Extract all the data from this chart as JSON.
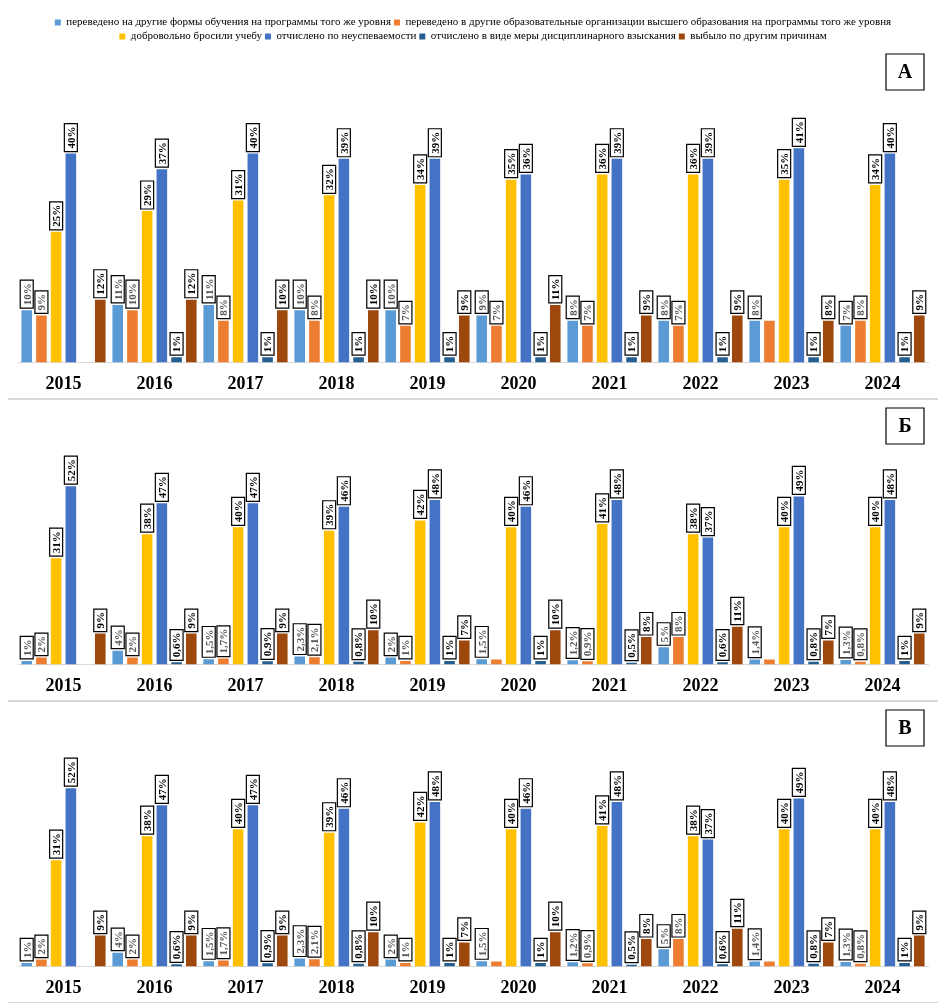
{
  "chart_data": [
    {
      "type": "bar",
      "categories": [
        "2015",
        "2016",
        "2017",
        "2018",
        "2019",
        "2020",
        "2021",
        "2022",
        "2023",
        "2024"
      ],
      "legend": "top",
      "annotations": [
        "А"
      ],
      "series": [
        {
          "name": "переведено на другие формы обучения на программы того же уровня",
          "color": "#5b9bd5",
          "values": [
            10,
            11,
            11,
            10,
            10,
            9,
            8,
            8,
            8,
            7
          ],
          "value_labels": [
            "10%",
            "11%",
            "11%",
            "10%",
            "10%",
            "9%",
            "8%",
            "8%",
            "8%",
            "7%"
          ]
        },
        {
          "name": "переведено в другие образовательные организации высшего образования на программы того же уровня",
          "color": "#ed7d31",
          "values": [
            9,
            10,
            8,
            8,
            7,
            7,
            7,
            7,
            8,
            8
          ],
          "value_labels": [
            "9%",
            "10%",
            "8%",
            "8%",
            "7%",
            "7%",
            "7%",
            "7%",
            null,
            "8%"
          ]
        },
        {
          "name": "добровольно бросили учебу",
          "color": "#ffc000",
          "values": [
            25,
            29,
            31,
            32,
            34,
            35,
            36,
            36,
            35,
            34
          ],
          "value_labels": [
            "25%",
            "29%",
            "31%",
            "32%",
            "34%",
            "35%",
            "36%",
            "36%",
            "35%",
            "34%"
          ]
        },
        {
          "name": "отчислено по неуспеваемости",
          "color": "#4472c4",
          "values": [
            40,
            37,
            40,
            39,
            39,
            36,
            39,
            39,
            41,
            40
          ],
          "value_labels": [
            "40%",
            "37%",
            "40%",
            "39%",
            "39%",
            "36%",
            "39%",
            "39%",
            "41%",
            "40%"
          ]
        },
        {
          "name": "отчислено в виде меры дисциплинарного взыскания",
          "color": "#255e91",
          "values": [
            null,
            1,
            1,
            1,
            1,
            1,
            1,
            1,
            1,
            1
          ],
          "value_labels": [
            null,
            "1%",
            "1%",
            "1%",
            "1%",
            "1%",
            "1%",
            "1%",
            "1%",
            "1%"
          ]
        },
        {
          "name": "выбыло по другим причинам",
          "color": "#9e480e",
          "values": [
            12,
            12,
            10,
            10,
            9,
            11,
            9,
            9,
            8,
            9
          ],
          "value_labels": [
            "12%",
            "12%",
            "10%",
            "10%",
            "9%",
            "11%",
            "9%",
            "9%",
            "8%",
            "9%"
          ]
        }
      ]
    },
    {
      "type": "bar",
      "categories": [
        "2015",
        "2016",
        "2017",
        "2018",
        "2019",
        "2020",
        "2021",
        "2022",
        "2023",
        "2024"
      ],
      "annotations": [
        "Б"
      ],
      "series": [
        {
          "color": "#5b9bd5",
          "values": [
            1,
            4,
            1.5,
            2.3,
            2,
            1.5,
            1.2,
            5,
            1.4,
            1.3
          ],
          "value_labels": [
            "1%",
            "4%",
            "1,5%",
            "2,3%",
            "2%",
            "1,5%",
            "1,2%",
            "5%",
            "1,4%",
            "1,3%"
          ]
        },
        {
          "color": "#ed7d31",
          "values": [
            2,
            2,
            1.7,
            2.1,
            1,
            1.4,
            0.9,
            8,
            1.4,
            0.8
          ],
          "value_labels": [
            "2%",
            "2%",
            "1,7%",
            "2,1%",
            "1%",
            null,
            "0,9%",
            "8%",
            null,
            "0,8%"
          ]
        },
        {
          "color": "#ffc000",
          "values": [
            31,
            38,
            40,
            39,
            42,
            40,
            41,
            38,
            40,
            40
          ],
          "value_labels": [
            "31%",
            "38%",
            "40%",
            "39%",
            "42%",
            "40%",
            "41%",
            "38%",
            "40%",
            "40%"
          ]
        },
        {
          "color": "#4472c4",
          "values": [
            52,
            47,
            47,
            46,
            48,
            46,
            48,
            37,
            49,
            48
          ],
          "value_labels": [
            "52%",
            "47%",
            "47%",
            "46%",
            "48%",
            "46%",
            "48%",
            "37%",
            "49%",
            "48%"
          ]
        },
        {
          "color": "#255e91",
          "values": [
            null,
            0.6,
            0.9,
            0.8,
            1,
            1,
            0.5,
            0.6,
            0.8,
            1
          ],
          "value_labels": [
            null,
            "0,6%",
            "0,9%",
            "0,8%",
            "1%",
            "1%",
            "0,5%",
            "0,6%",
            "0,8%",
            "1%"
          ]
        },
        {
          "color": "#9e480e",
          "values": [
            9,
            9,
            9,
            10,
            7,
            10,
            8,
            11,
            7,
            9
          ],
          "value_labels": [
            "9%",
            "9%",
            "9%",
            "10%",
            "7%",
            "10%",
            "8%",
            "11%",
            "7%",
            "9%"
          ]
        }
      ]
    },
    {
      "type": "bar",
      "categories": [
        "2015",
        "2016",
        "2017",
        "2018",
        "2019",
        "2020",
        "2021",
        "2022",
        "2023",
        "2024"
      ],
      "annotations": [
        "В"
      ],
      "series": [
        {
          "color": "#5b9bd5",
          "values": [
            1,
            4,
            1.5,
            2.3,
            2,
            1.5,
            1.2,
            5,
            1.4,
            1.3
          ],
          "value_labels": [
            "1%",
            "4%",
            "1,5%",
            "2,3%",
            "2%",
            "1,5%",
            "1,2%",
            "5%",
            "1,4%",
            "1,3%"
          ]
        },
        {
          "color": "#ed7d31",
          "values": [
            2,
            2,
            1.7,
            2.1,
            1,
            1.4,
            0.9,
            8,
            1.4,
            0.8
          ],
          "value_labels": [
            "2%",
            "2%",
            "1,7%",
            "2,1%",
            "1%",
            null,
            "0,9%",
            "8%",
            null,
            "0,8%"
          ]
        },
        {
          "color": "#ffc000",
          "values": [
            31,
            38,
            40,
            39,
            42,
            40,
            41,
            38,
            40,
            40
          ],
          "value_labels": [
            "31%",
            "38%",
            "40%",
            "39%",
            "42%",
            "40%",
            "41%",
            "38%",
            "40%",
            "40%"
          ]
        },
        {
          "color": "#4472c4",
          "values": [
            52,
            47,
            47,
            46,
            48,
            46,
            48,
            37,
            49,
            48
          ],
          "value_labels": [
            "52%",
            "47%",
            "47%",
            "46%",
            "48%",
            "46%",
            "48%",
            "37%",
            "49%",
            "48%"
          ]
        },
        {
          "color": "#255e91",
          "values": [
            null,
            0.6,
            0.9,
            0.8,
            1,
            1,
            0.5,
            0.6,
            0.8,
            1
          ],
          "value_labels": [
            null,
            "0,6%",
            "0,9%",
            "0,8%",
            "1%",
            "1%",
            "0,5%",
            "0,6%",
            "0,8%",
            "1%"
          ]
        },
        {
          "color": "#9e480e",
          "values": [
            9,
            9,
            9,
            10,
            7,
            10,
            8,
            11,
            7,
            9
          ],
          "value_labels": [
            "9%",
            "9%",
            "9%",
            "10%",
            "7%",
            "10%",
            "8%",
            "11%",
            "7%",
            "9%"
          ]
        }
      ]
    }
  ]
}
